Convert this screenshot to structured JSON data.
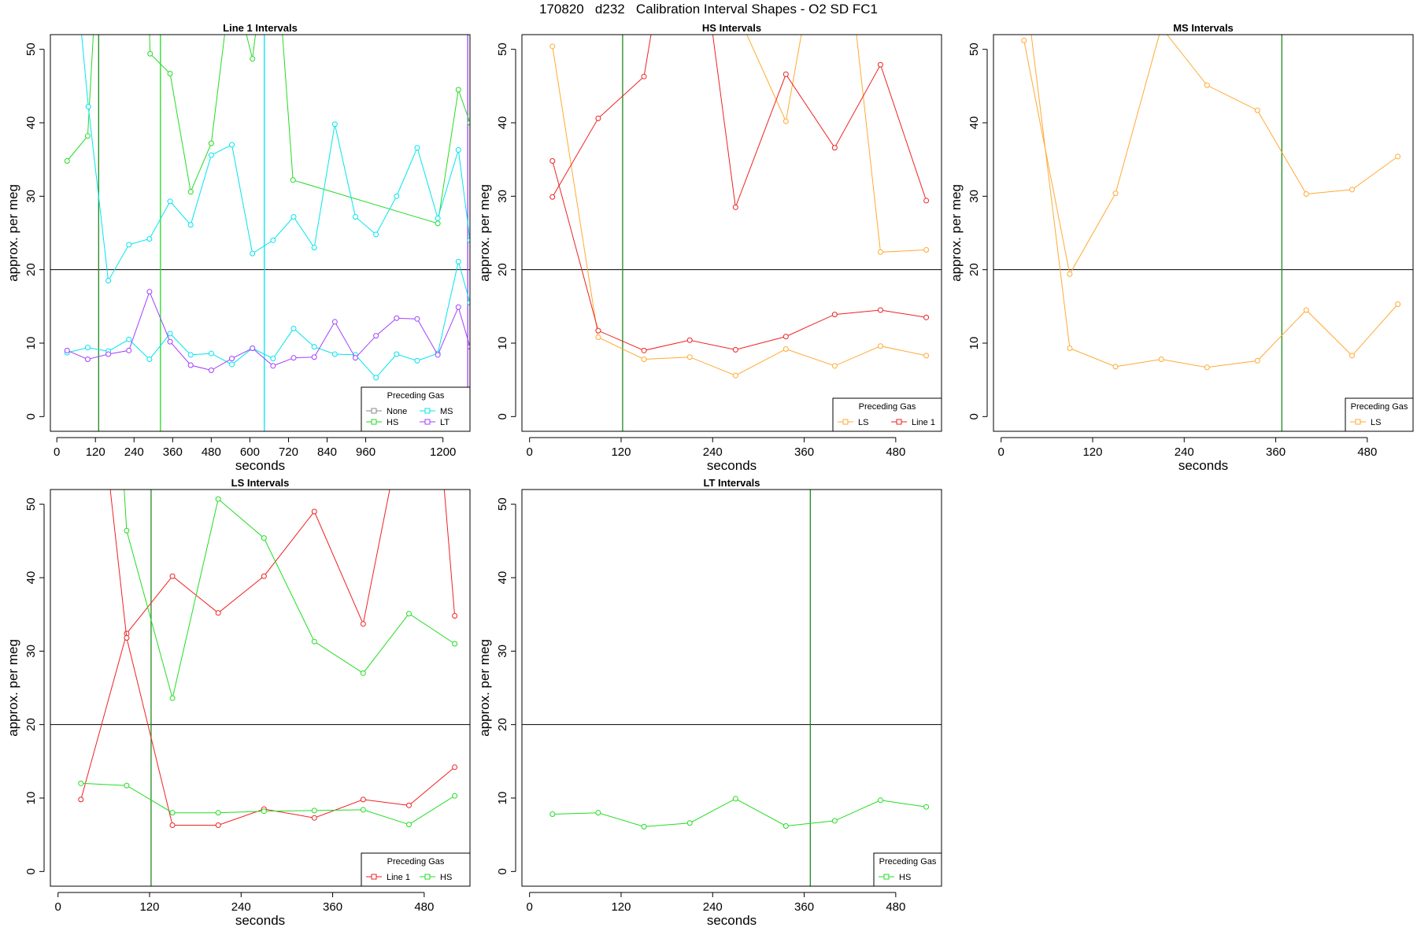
{
  "figure": {
    "title": "170820   d232   Calibration Interval Shapes - O2 SD FC1"
  },
  "chart_data": [
    {
      "type": "line",
      "title": "Line 1 Intervals",
      "xlabel": "seconds",
      "ylabel": "approx. per meg",
      "xlim": [
        -20,
        1284
      ],
      "ylim": [
        -2,
        52
      ],
      "x_ticks": [
        0,
        120,
        240,
        360,
        480,
        600,
        720,
        840,
        960,
        1200
      ],
      "y_ticks": [
        0,
        10,
        20,
        30,
        40,
        50
      ],
      "hline": 20,
      "vlines": [
        {
          "x": 130,
          "color": "#1f8a1f"
        },
        {
          "x": 322,
          "color": "#22dd22"
        },
        {
          "x": 645,
          "color": "#00e5ee"
        },
        {
          "x": 1277,
          "color": "#a040ff"
        }
      ],
      "legend": {
        "title": "Preceding Gas",
        "position": "bottom-right",
        "cols": 2,
        "entries": [
          {
            "label": "None",
            "color": "#888888"
          },
          {
            "label": "MS",
            "color": "#00e5ee"
          },
          {
            "label": "HS",
            "color": "#22dd22"
          },
          {
            "label": "LT",
            "color": "#a040ff"
          }
        ]
      },
      "series": [
        {
          "name": "HS",
          "color": "#22dd22",
          "points": [
            [
              32,
              34.8
            ],
            [
              96,
              38.2
            ],
            [
              136,
              70
            ],
            [
              274,
              72
            ],
            [
              290,
              49.4
            ],
            [
              352,
              46.7
            ],
            [
              416,
              30.6
            ],
            [
              480,
              37.2
            ],
            [
              544,
              60
            ],
            [
              608,
              48.7
            ],
            [
              640,
              60
            ],
            [
              688,
              60
            ],
            [
              734,
              32.2
            ],
            [
              1184,
              26.3
            ],
            [
              1248,
              44.5
            ],
            [
              1284,
              40
            ]
          ]
        },
        {
          "name": "MS",
          "color": "#00e5ee",
          "points": [
            [
              60,
              60
            ],
            [
              98,
              42.2
            ],
            [
              160,
              18.5
            ],
            [
              224,
              23.4
            ],
            [
              288,
              24.2
            ],
            [
              352,
              29.3
            ],
            [
              416,
              26.1
            ],
            [
              480,
              35.6
            ],
            [
              544,
              37
            ],
            [
              608,
              22.2
            ],
            [
              672,
              24
            ],
            [
              736,
              27.2
            ],
            [
              800,
              23
            ],
            [
              864,
              39.8
            ],
            [
              928,
              27.2
            ],
            [
              992,
              24.8
            ],
            [
              1056,
              30
            ],
            [
              1120,
              36.6
            ],
            [
              1184,
              27
            ],
            [
              1248,
              36.3
            ],
            [
              1284,
              24
            ]
          ]
        },
        {
          "name": "MS",
          "color": "#00e5ee",
          "points": [
            [
              32,
              8.7
            ],
            [
              96,
              9.4
            ],
            [
              160,
              8.9
            ],
            [
              224,
              10.5
            ],
            [
              288,
              7.8
            ],
            [
              352,
              11.3
            ],
            [
              416,
              8.4
            ],
            [
              480,
              8.6
            ],
            [
              544,
              7.1
            ],
            [
              608,
              9.3
            ],
            [
              672,
              7.9
            ],
            [
              736,
              12
            ],
            [
              800,
              9.5
            ],
            [
              864,
              8.5
            ],
            [
              928,
              8.4
            ],
            [
              992,
              5.3
            ],
            [
              1056,
              8.5
            ],
            [
              1120,
              7.6
            ],
            [
              1184,
              8.6
            ],
            [
              1248,
              21.1
            ],
            [
              1284,
              15.5
            ]
          ]
        },
        {
          "name": "LT",
          "color": "#a040ff",
          "points": [
            [
              32,
              9
            ],
            [
              96,
              7.8
            ],
            [
              160,
              8.5
            ],
            [
              224,
              9
            ],
            [
              288,
              17
            ],
            [
              352,
              10.2
            ],
            [
              416,
              7
            ],
            [
              480,
              6.3
            ],
            [
              544,
              7.9
            ],
            [
              608,
              9.3
            ],
            [
              672,
              6.9
            ],
            [
              736,
              8
            ],
            [
              800,
              8.1
            ],
            [
              864,
              12.9
            ],
            [
              928,
              8
            ],
            [
              992,
              11
            ],
            [
              1056,
              13.4
            ],
            [
              1120,
              13.3
            ],
            [
              1184,
              8.4
            ],
            [
              1248,
              14.9
            ],
            [
              1284,
              9.5
            ]
          ]
        }
      ]
    },
    {
      "type": "line",
      "title": "HS Intervals",
      "xlabel": "seconds",
      "ylabel": "approx. per meg",
      "xlim": [
        -10,
        540
      ],
      "ylim": [
        -2,
        52
      ],
      "x_ticks": [
        0,
        120,
        240,
        360,
        480
      ],
      "y_ticks": [
        0,
        10,
        20,
        30,
        40,
        50
      ],
      "hline": 20,
      "vlines": [
        {
          "x": 122,
          "color": "#1f8a1f"
        }
      ],
      "legend": {
        "title": "Preceding Gas",
        "position": "bottom-right",
        "cols": 2,
        "entries": [
          {
            "label": "LS",
            "color": "#ffaa33"
          },
          {
            "label": "Line 1",
            "color": "#ee2222"
          }
        ]
      },
      "series": [
        {
          "name": "LS",
          "color": "#ffaa33",
          "points": [
            [
              30,
              50.4
            ],
            [
              90,
              10.8
            ],
            [
              150,
              7.8
            ],
            [
              210,
              8.1
            ],
            [
              270,
              5.6
            ],
            [
              336,
              9.2
            ],
            [
              400,
              6.9
            ],
            [
              460,
              9.6
            ],
            [
              520,
              8.3
            ]
          ]
        },
        {
          "name": "LS",
          "color": "#ffaa33",
          "points": [
            [
              250,
              60
            ],
            [
              336,
              40.2
            ],
            [
              370,
              60
            ],
            [
              420,
              60
            ],
            [
              460,
              22.4
            ],
            [
              520,
              22.7
            ]
          ]
        },
        {
          "name": "Line 1",
          "color": "#ee2222",
          "points": [
            [
              30,
              29.9
            ],
            [
              90,
              40.6
            ],
            [
              150,
              46.3
            ],
            [
              172,
              60
            ],
            [
              230,
              60
            ],
            [
              270,
              28.5
            ],
            [
              336,
              46.6
            ],
            [
              400,
              36.6
            ],
            [
              460,
              47.9
            ],
            [
              520,
              29.4
            ]
          ]
        },
        {
          "name": "Line 1",
          "color": "#ee2222",
          "points": [
            [
              30,
              34.8
            ],
            [
              90,
              11.7
            ],
            [
              150,
              9
            ],
            [
              210,
              10.4
            ],
            [
              270,
              9.1
            ],
            [
              336,
              10.9
            ],
            [
              400,
              13.9
            ],
            [
              460,
              14.5
            ],
            [
              520,
              13.5
            ]
          ]
        }
      ]
    },
    {
      "type": "line",
      "title": "MS Intervals",
      "xlabel": "seconds",
      "ylabel": "approx. per meg",
      "xlim": [
        -10,
        540
      ],
      "ylim": [
        -2,
        52
      ],
      "x_ticks": [
        0,
        120,
        240,
        360,
        480
      ],
      "y_ticks": [
        0,
        10,
        20,
        30,
        40,
        50
      ],
      "hline": 20,
      "vlines": [
        {
          "x": 368,
          "color": "#1f8a1f"
        }
      ],
      "legend": {
        "title": "Preceding Gas",
        "position": "bottom-right",
        "cols": 1,
        "entries": [
          {
            "label": "LS",
            "color": "#ffaa33"
          }
        ]
      },
      "series": [
        {
          "name": "LS",
          "color": "#ffaa33",
          "points": [
            [
              30,
              51.2
            ],
            [
              90,
              19.4
            ],
            [
              150,
              30.4
            ],
            [
              210,
              53
            ],
            [
              270,
              45.1
            ],
            [
              336,
              41.7
            ],
            [
              400,
              30.3
            ],
            [
              460,
              30.9
            ],
            [
              520,
              35.4
            ]
          ]
        },
        {
          "name": "LS",
          "color": "#ffaa33",
          "points": [
            [
              30,
              60
            ],
            [
              90,
              9.3
            ],
            [
              150,
              6.8
            ],
            [
              210,
              7.8
            ],
            [
              270,
              6.7
            ],
            [
              336,
              7.6
            ],
            [
              400,
              14.5
            ],
            [
              460,
              8.3
            ],
            [
              520,
              15.3
            ]
          ]
        }
      ]
    },
    {
      "type": "line",
      "title": "LS Intervals",
      "xlabel": "seconds",
      "ylabel": "approx. per meg",
      "xlim": [
        -10,
        540
      ],
      "ylim": [
        -2,
        52
      ],
      "x_ticks": [
        0,
        120,
        240,
        360,
        480
      ],
      "y_ticks": [
        0,
        10,
        20,
        30,
        40,
        50
      ],
      "hline": 20,
      "vlines": [
        {
          "x": 122,
          "color": "#1f8a1f"
        }
      ],
      "legend": {
        "title": "Preceding Gas",
        "position": "bottom-right",
        "cols": 2,
        "entries": [
          {
            "label": "Line 1",
            "color": "#ee2222"
          },
          {
            "label": "HS",
            "color": "#22dd22"
          }
        ]
      },
      "series": [
        {
          "name": "Line 1",
          "color": "#ee2222",
          "points": [
            [
              30,
              9.8
            ],
            [
              90,
              32.4
            ],
            [
              150,
              40.2
            ],
            [
              210,
              35.2
            ],
            [
              270,
              40.2
            ],
            [
              336,
              49
            ],
            [
              400,
              33.7
            ],
            [
              450,
              60
            ],
            [
              500,
              60
            ],
            [
              520,
              34.8
            ]
          ]
        },
        {
          "name": "Line 1",
          "color": "#ee2222",
          "points": [
            [
              60,
              60
            ],
            [
              90,
              31.8
            ],
            [
              150,
              6.3
            ],
            [
              210,
              6.3
            ],
            [
              270,
              8.5
            ],
            [
              336,
              7.3
            ],
            [
              400,
              9.8
            ],
            [
              460,
              9
            ],
            [
              520,
              14.2
            ]
          ]
        },
        {
          "name": "HS",
          "color": "#22dd22",
          "points": [
            [
              30,
              12
            ],
            [
              90,
              11.7
            ],
            [
              150,
              8
            ],
            [
              210,
              8
            ],
            [
              270,
              8.2
            ],
            [
              336,
              8.3
            ],
            [
              400,
              8.4
            ],
            [
              460,
              6.4
            ],
            [
              520,
              10.3
            ]
          ]
        },
        {
          "name": "HS",
          "color": "#22dd22",
          "points": [
            [
              82,
              60
            ],
            [
              90,
              46.4
            ],
            [
              150,
              23.6
            ],
            [
              210,
              50.7
            ],
            [
              270,
              45.4
            ],
            [
              336,
              31.3
            ],
            [
              400,
              27
            ],
            [
              460,
              35.1
            ],
            [
              520,
              31
            ]
          ]
        }
      ]
    },
    {
      "type": "line",
      "title": "LT Intervals",
      "xlabel": "seconds",
      "ylabel": "approx. per meg",
      "xlim": [
        -10,
        540
      ],
      "ylim": [
        -2,
        52
      ],
      "x_ticks": [
        0,
        120,
        240,
        360,
        480
      ],
      "y_ticks": [
        0,
        10,
        20,
        30,
        40,
        50
      ],
      "hline": 20,
      "vlines": [
        {
          "x": 368,
          "color": "#1f8a1f"
        }
      ],
      "legend": {
        "title": "Preceding Gas",
        "position": "bottom-right",
        "cols": 1,
        "entries": [
          {
            "label": "HS",
            "color": "#22dd22"
          }
        ]
      },
      "series": [
        {
          "name": "HS",
          "color": "#22dd22",
          "points": [
            [
              30,
              7.8
            ],
            [
              90,
              8
            ],
            [
              150,
              6.1
            ],
            [
              210,
              6.6
            ],
            [
              270,
              9.9
            ],
            [
              336,
              6.2
            ],
            [
              400,
              6.9
            ],
            [
              460,
              9.7
            ],
            [
              520,
              8.8
            ]
          ]
        }
      ]
    }
  ]
}
